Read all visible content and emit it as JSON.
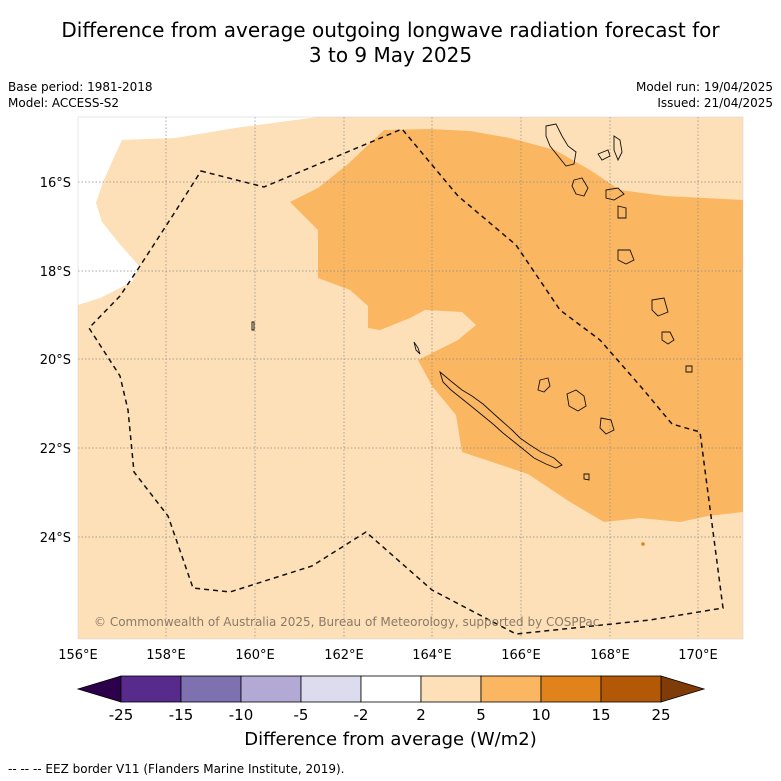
{
  "title_line1": "Difference from average outgoing longwave radiation forecast for",
  "title_line2": "3 to 9 May 2025",
  "meta_left": {
    "base_period": "Base period: 1981-2018",
    "model": "Model: ACCESS-S2"
  },
  "meta_right": {
    "model_run": "Model run: 19/04/2025",
    "issued": "Issued: 21/04/2025"
  },
  "lon_labels": [
    "156°E",
    "158°E",
    "160°E",
    "162°E",
    "164°E",
    "166°E",
    "168°E",
    "170°E"
  ],
  "lat_labels": [
    "16°S",
    "18°S",
    "20°S",
    "22°S",
    "24°S"
  ],
  "copyright": "© Commonwealth of Australia 2025, Bureau of Meteorology, supported by COSPPac",
  "colorbar": {
    "ticks": [
      "-25",
      "-15",
      "-10",
      "-5",
      "-2",
      "2",
      "5",
      "10",
      "15",
      "25"
    ],
    "colors": [
      "#582a8c",
      "#7e71b0",
      "#b2a9d4",
      "#dcdcee",
      "#ffffff",
      "#fde0b7",
      "#fbb661",
      "#e0831a",
      "#b35806"
    ],
    "under_color": "#2d004b",
    "over_color": "#7f3b08",
    "label": "Difference from average (W/m2)"
  },
  "legend_note": "--  --  -- EEZ border V11 (Flanders Marine Institute, 2019).",
  "fill_colors": {
    "light": "#fde0b7",
    "medium": "#fbb661",
    "dark": "#e0831a"
  }
}
